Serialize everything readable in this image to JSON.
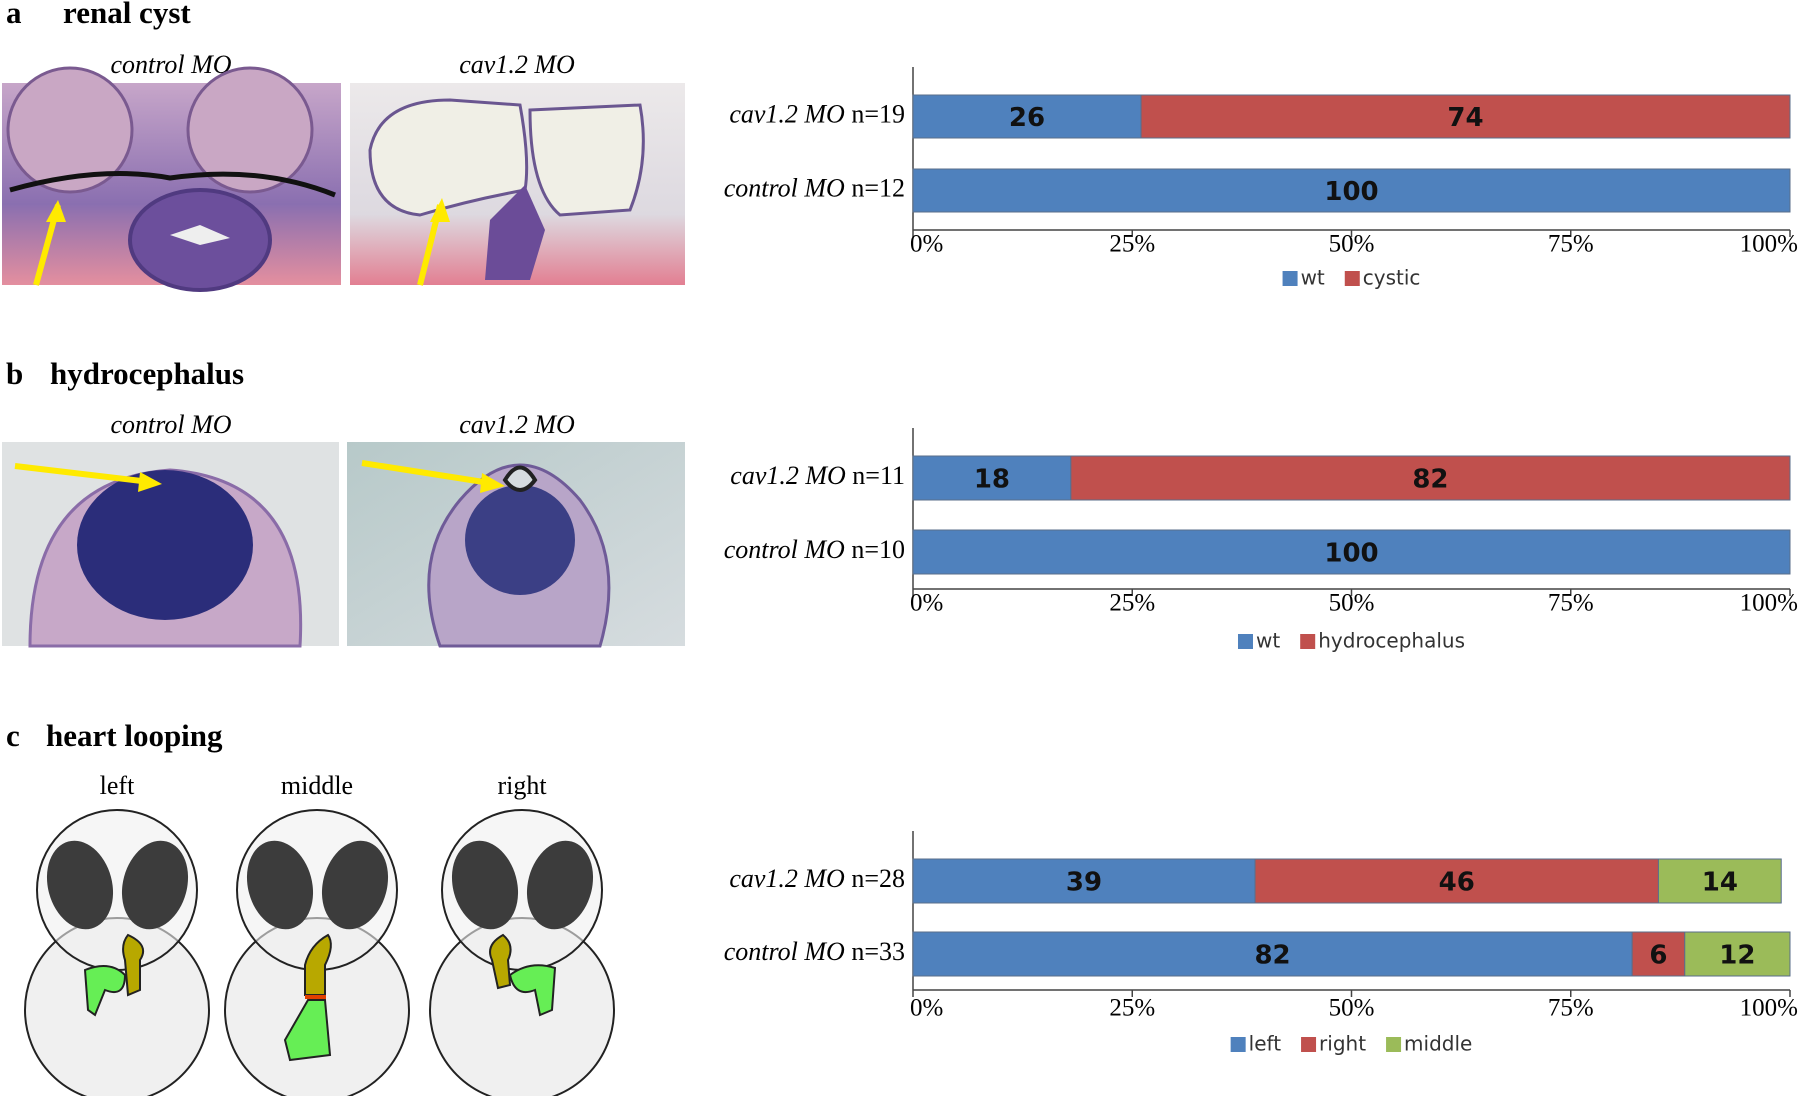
{
  "panels": [
    {
      "letter": "a",
      "title": "renal cyst",
      "image_labels": [
        "control MO",
        "cav1.2 MO"
      ]
    },
    {
      "letter": "b",
      "title": "hydrocephalus",
      "image_labels": [
        "control MO",
        "cav1.2 MO"
      ]
    },
    {
      "letter": "c",
      "title": "heart looping",
      "image_labels": [
        "left",
        "middle",
        "right"
      ]
    }
  ],
  "chart_data": [
    {
      "type": "bar",
      "orientation": "horizontal",
      "stacked": true,
      "categories": [
        "cav1.2 MO",
        "control MO"
      ],
      "n_labels": [
        "n=19",
        "n=12"
      ],
      "series": [
        {
          "name": "wt",
          "color": "#4f81bd",
          "values": [
            26,
            100
          ]
        },
        {
          "name": "cystic",
          "color": "#c0504d",
          "values": [
            74,
            null
          ]
        }
      ],
      "xlim": [
        0,
        100
      ],
      "xticks": [
        {
          "value": 0,
          "label": "0%"
        },
        {
          "value": 25,
          "label": "25%"
        },
        {
          "value": 50,
          "label": "50%"
        },
        {
          "value": 75,
          "label": "75%"
        },
        {
          "value": 100,
          "label": "100%"
        }
      ],
      "legend": "bottom"
    },
    {
      "type": "bar",
      "orientation": "horizontal",
      "stacked": true,
      "categories": [
        "cav1.2 MO",
        "control MO"
      ],
      "n_labels": [
        "n=11",
        "n=10"
      ],
      "series": [
        {
          "name": "wt",
          "color": "#4f81bd",
          "values": [
            18,
            100
          ]
        },
        {
          "name": "hydrocephalus",
          "color": "#c0504d",
          "values": [
            82,
            null
          ]
        }
      ],
      "xlim": [
        0,
        100
      ],
      "xticks": [
        {
          "value": 0,
          "label": "0%"
        },
        {
          "value": 25,
          "label": "25%"
        },
        {
          "value": 50,
          "label": "50%"
        },
        {
          "value": 75,
          "label": "75%"
        },
        {
          "value": 100,
          "label": "100%"
        }
      ],
      "legend": "bottom"
    },
    {
      "type": "bar",
      "orientation": "horizontal",
      "stacked": true,
      "categories": [
        "cav1.2 MO",
        "control MO"
      ],
      "n_labels": [
        "n=28",
        "n=33"
      ],
      "series": [
        {
          "name": "left",
          "color": "#4f81bd",
          "values": [
            39,
            82
          ]
        },
        {
          "name": "right",
          "color": "#c0504d",
          "values": [
            46,
            6
          ]
        },
        {
          "name": "middle",
          "color": "#9bbb59",
          "values": [
            14,
            12
          ]
        }
      ],
      "xlim": [
        0,
        100
      ],
      "xticks": [
        {
          "value": 0,
          "label": "0%"
        },
        {
          "value": 25,
          "label": "25%"
        },
        {
          "value": 50,
          "label": "50%"
        },
        {
          "value": 75,
          "label": "75%"
        },
        {
          "value": 100,
          "label": "100%"
        }
      ],
      "legend": "bottom"
    }
  ]
}
